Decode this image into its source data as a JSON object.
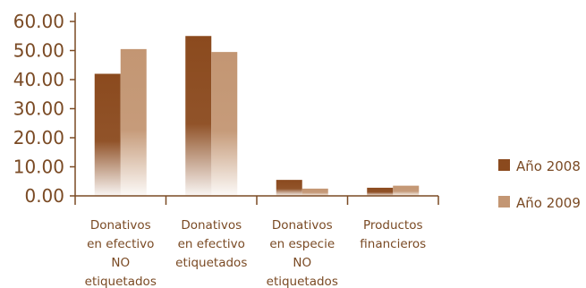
{
  "chart_data": {
    "type": "bar",
    "title": "",
    "xlabel": "",
    "ylabel": "",
    "ylim": [
      0,
      60
    ],
    "y_ticks": [
      "0.00",
      "10.00",
      "20.00",
      "30.00",
      "40.00",
      "50.00",
      "60.00"
    ],
    "categories": [
      [
        "Donativos",
        "en efectivo",
        "NO",
        "etiquetados"
      ],
      [
        "Donativos",
        "en efectivo",
        "etiquetados"
      ],
      [
        "Donativos",
        "en especie",
        "NO",
        "etiquetados"
      ],
      [
        "Productos",
        "financieros"
      ]
    ],
    "series": [
      {
        "name": "Año 2008",
        "values": [
          42,
          55,
          5.5,
          2.8
        ],
        "color": "#8b4a1e"
      },
      {
        "name": "Año 2009",
        "values": [
          50.5,
          49.5,
          2.5,
          3.5
        ],
        "color": "#c39673"
      }
    ],
    "grid": false,
    "legend_position": "right",
    "bar_style": "gradient fading to white at the base",
    "axis_color": "#7a4a24"
  }
}
